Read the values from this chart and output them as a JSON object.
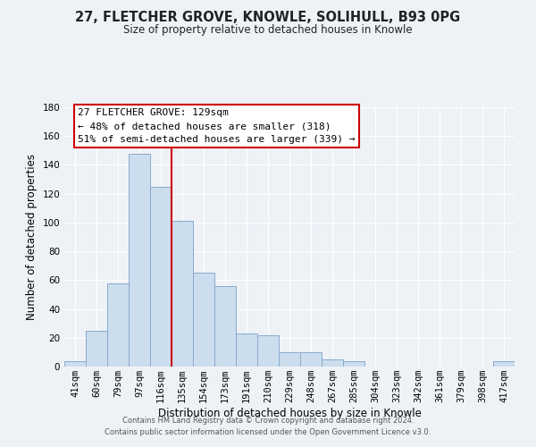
{
  "title": "27, FLETCHER GROVE, KNOWLE, SOLIHULL, B93 0PG",
  "subtitle": "Size of property relative to detached houses in Knowle",
  "xlabel": "Distribution of detached houses by size in Knowle",
  "ylabel": "Number of detached properties",
  "bar_labels": [
    "41sqm",
    "60sqm",
    "79sqm",
    "97sqm",
    "116sqm",
    "135sqm",
    "154sqm",
    "173sqm",
    "191sqm",
    "210sqm",
    "229sqm",
    "248sqm",
    "267sqm",
    "285sqm",
    "304sqm",
    "323sqm",
    "342sqm",
    "361sqm",
    "379sqm",
    "398sqm",
    "417sqm"
  ],
  "bar_values": [
    4,
    25,
    58,
    148,
    125,
    101,
    65,
    56,
    23,
    22,
    10,
    10,
    5,
    4,
    0,
    0,
    0,
    0,
    0,
    0,
    4
  ],
  "bar_color": "#ccdded",
  "bar_edge_color": "#88aacc",
  "vline_color": "#cc0000",
  "vline_pos": 4.5,
  "ylim": [
    0,
    180
  ],
  "yticks": [
    0,
    20,
    40,
    60,
    80,
    100,
    120,
    140,
    160,
    180
  ],
  "annotation_title": "27 FLETCHER GROVE: 129sqm",
  "annotation_line1": "← 48% of detached houses are smaller (318)",
  "annotation_line2": "51% of semi-detached houses are larger (339) →",
  "annotation_box_color": "#ffffff",
  "annotation_box_edge": "#cc0000",
  "footer_line1": "Contains HM Land Registry data © Crown copyright and database right 2024.",
  "footer_line2": "Contains public sector information licensed under the Open Government Licence v3.0.",
  "background_color": "#eef2f7",
  "grid_color": "#ffffff",
  "title_fontsize": 10.5,
  "subtitle_fontsize": 8.5,
  "ylabel_fontsize": 8.5,
  "xlabel_fontsize": 8.5,
  "tick_fontsize": 7.5,
  "footer_fontsize": 6.0
}
